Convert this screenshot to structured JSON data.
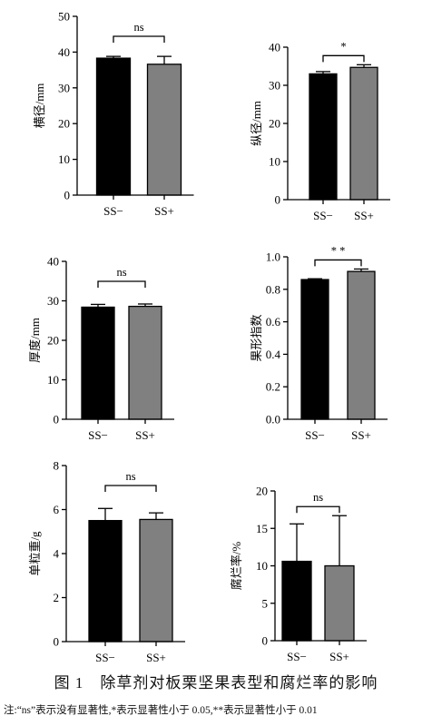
{
  "chart_data": [
    {
      "type": "bar",
      "categories": [
        "SS−",
        "SS+"
      ],
      "values": [
        38.3,
        36.6
      ],
      "errors": [
        0.5,
        2.2
      ],
      "ylabel": "横径/mm",
      "ylim": [
        0,
        50
      ],
      "yticks": [
        0,
        10,
        20,
        30,
        40,
        50
      ],
      "yticklabels": [
        "0",
        "10",
        "20",
        "30",
        "40",
        "50"
      ],
      "significance": "ns",
      "colors": [
        "#000000",
        "#808080"
      ]
    },
    {
      "type": "bar",
      "categories": [
        "SS−",
        "SS+"
      ],
      "values": [
        33.0,
        34.7
      ],
      "errors": [
        0.6,
        0.7
      ],
      "ylabel": "纵径/mm",
      "ylim": [
        0,
        40
      ],
      "yticks": [
        0,
        10,
        20,
        30,
        40
      ],
      "yticklabels": [
        "0",
        "10",
        "20",
        "30",
        "40"
      ],
      "significance": "*",
      "colors": [
        "#000000",
        "#808080"
      ]
    },
    {
      "type": "bar",
      "categories": [
        "SS−",
        "SS+"
      ],
      "values": [
        28.4,
        28.6
      ],
      "errors": [
        0.7,
        0.6
      ],
      "ylabel": "厚度/mm",
      "ylim": [
        0,
        40
      ],
      "yticks": [
        0,
        10,
        20,
        30,
        40
      ],
      "yticklabels": [
        "0",
        "10",
        "20",
        "30",
        "40"
      ],
      "significance": "ns",
      "colors": [
        "#000000",
        "#808080"
      ]
    },
    {
      "type": "bar",
      "categories": [
        "SS−",
        "SS+"
      ],
      "values": [
        0.86,
        0.91
      ],
      "errors": [
        0.005,
        0.015
      ],
      "ylabel": "果形指数",
      "ylim": [
        0,
        1.0
      ],
      "yticks": [
        0,
        0.2,
        0.4,
        0.6,
        0.8,
        1.0
      ],
      "yticklabels": [
        "0.0",
        "0.2",
        "0.4",
        "0.6",
        "0.8",
        "1.0"
      ],
      "significance": "* *",
      "colors": [
        "#000000",
        "#808080"
      ]
    },
    {
      "type": "bar",
      "categories": [
        "SS−",
        "SS+"
      ],
      "values": [
        5.5,
        5.55
      ],
      "errors": [
        0.55,
        0.3
      ],
      "ylabel": "单粒重/g",
      "ylim": [
        0,
        8
      ],
      "yticks": [
        0,
        2,
        4,
        6,
        8
      ],
      "yticklabels": [
        "0",
        "2",
        "4",
        "6",
        "8"
      ],
      "significance": "ns",
      "colors": [
        "#000000",
        "#808080"
      ]
    },
    {
      "type": "bar",
      "categories": [
        "SS−",
        "SS+"
      ],
      "values": [
        10.6,
        10.0
      ],
      "errors": [
        5.0,
        6.7
      ],
      "ylabel": "腐烂率/%",
      "ylim": [
        0,
        20
      ],
      "yticks": [
        0,
        5,
        10,
        15,
        20
      ],
      "yticklabels": [
        "0",
        "5",
        "10",
        "15",
        "20"
      ],
      "significance": "ns",
      "colors": [
        "#000000",
        "#808080"
      ]
    }
  ],
  "caption": "图 1　除草剂对板栗坚果表型和腐烂率的影响",
  "note": "注:“ns”表示没有显著性,*表示显著性小于 0.05,**表示显著性小于 0.01"
}
